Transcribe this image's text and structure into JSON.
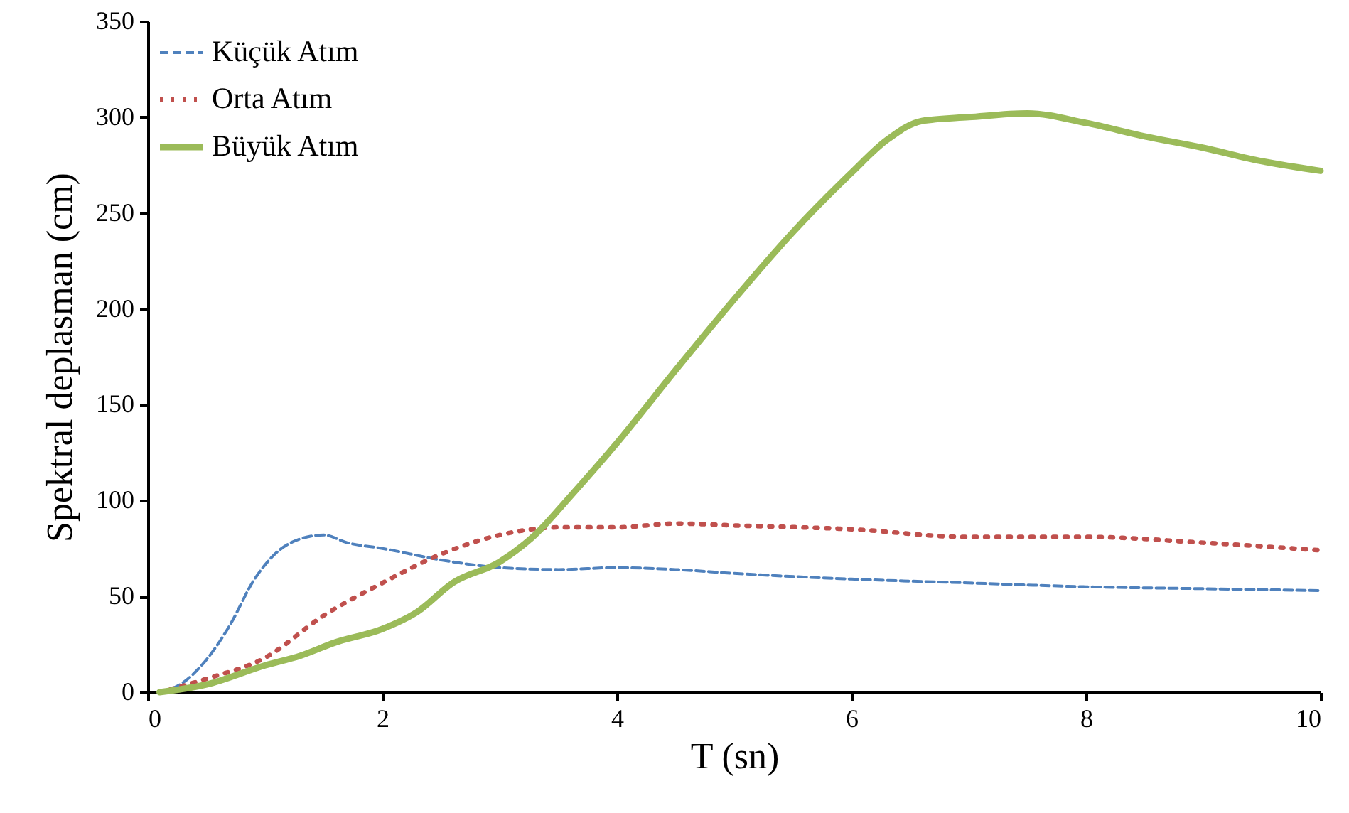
{
  "chart_data": {
    "type": "line",
    "xlabel": "T (sn)",
    "ylabel": "Spektral deplasman (cm)",
    "xlim": [
      0,
      10
    ],
    "xticks": [
      0,
      2,
      4,
      6,
      8,
      10
    ],
    "ylim": [
      0,
      350
    ],
    "yticks": [
      0,
      50,
      100,
      150,
      200,
      250,
      300,
      350
    ],
    "grid": false,
    "legend": "top left",
    "marker": "none",
    "series": [
      {
        "name": "Küçük Atım",
        "color": "#4f81bd",
        "line_style": "dashed",
        "x": [
          0.1,
          0.3,
          0.5,
          0.7,
          0.9,
          1.1,
          1.3,
          1.5,
          1.7,
          2,
          2.5,
          3,
          3.5,
          4,
          4.5,
          5,
          6,
          7,
          8,
          9,
          10
        ],
        "values": [
          0,
          5,
          17,
          35,
          58,
          73,
          80,
          82,
          78,
          75,
          69,
          65,
          64,
          65,
          64,
          62,
          59,
          57,
          55,
          54,
          53
        ]
      },
      {
        "name": "Orta Atım",
        "color": "#c0504d",
        "line_style": "dotted",
        "x": [
          0.1,
          0.5,
          1,
          1.5,
          2,
          2.5,
          3,
          3.5,
          4,
          4.5,
          5,
          6,
          7,
          8,
          9,
          10
        ],
        "values": [
          0,
          7,
          18,
          40,
          57,
          72,
          82,
          86,
          86,
          88,
          87,
          85,
          81,
          81,
          78,
          74
        ]
      },
      {
        "name": "Büyük Atım",
        "color": "#9bbb59",
        "line_style": "solid",
        "x": [
          0.1,
          0.5,
          1,
          1.3,
          1.6,
          2,
          2.3,
          2.6,
          3,
          3.3,
          3.6,
          4,
          4.5,
          5,
          5.5,
          6,
          6.3,
          6.6,
          7,
          7.5,
          8,
          8.5,
          9,
          9.5,
          10
        ],
        "values": [
          0,
          4,
          14,
          19,
          26,
          33,
          42,
          57,
          68,
          82,
          102,
          130,
          168,
          205,
          240,
          271,
          288,
          298,
          300,
          302,
          297,
          290,
          284,
          277,
          272
        ]
      }
    ]
  }
}
